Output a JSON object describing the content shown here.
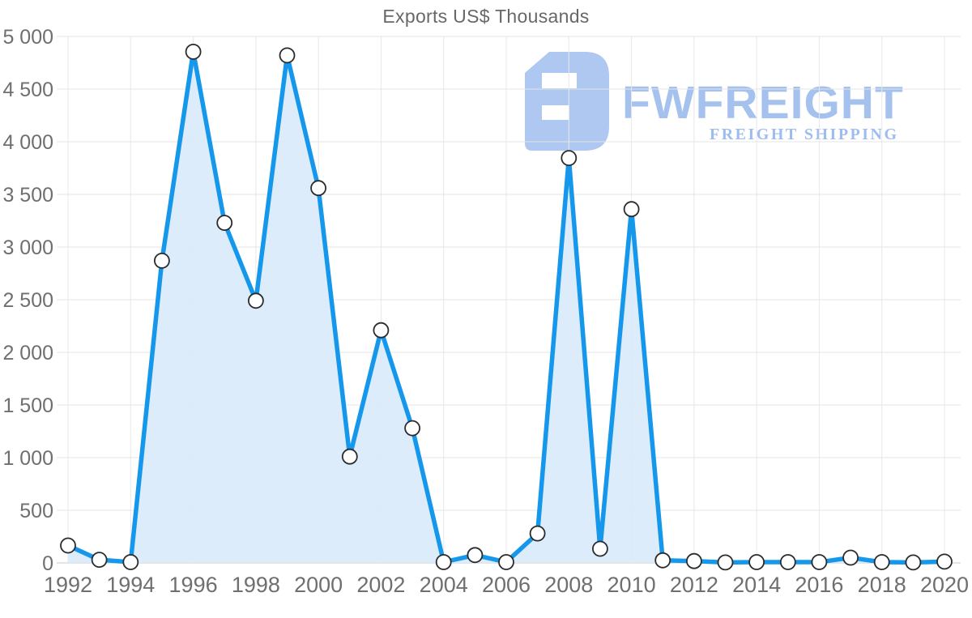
{
  "title": "Exports US$ Thousands",
  "watermark": {
    "brand": "FWFREIGHT",
    "tagline": "FREIGHT SHIPPING",
    "logo_color": "#aec8f1",
    "brand_color": "#a5c2ef",
    "tagline_color": "#9dbdf0"
  },
  "chart_data": {
    "type": "area",
    "title": "Exports US$ Thousands",
    "series_name": "Exports US$ Thousands",
    "x": [
      1992,
      1993,
      1994,
      1995,
      1996,
      1997,
      1998,
      1999,
      2000,
      2001,
      2002,
      2003,
      2004,
      2005,
      2006,
      2007,
      2008,
      2009,
      2010,
      2011,
      2012,
      2013,
      2014,
      2015,
      2016,
      2017,
      2018,
      2019,
      2020
    ],
    "values": [
      165,
      30,
      8,
      2870,
      4855,
      3230,
      2490,
      4820,
      3560,
      1010,
      2210,
      1280,
      8,
      75,
      8,
      280,
      3845,
      135,
      3360,
      25,
      18,
      5,
      8,
      8,
      8,
      50,
      8,
      5,
      12
    ],
    "xlabel": "",
    "ylabel": "",
    "ylim": [
      0,
      5000
    ],
    "ytick_step": 500,
    "xtick_step": 2,
    "grid": true,
    "legend": "none",
    "line_color": "#1598eb",
    "fill_color": "#d9eafb",
    "fill_opacity": 0.9,
    "marker": {
      "fill": "#ffffff",
      "stroke": "#2b2b2b",
      "radius": 9,
      "stroke_width": 1.8
    },
    "grid_color_h": "#e4e4e4",
    "grid_color_v": "#e8e8e8",
    "axis_line_color": "#c9c9c9",
    "axis_label_color": "#6f6f6f"
  }
}
